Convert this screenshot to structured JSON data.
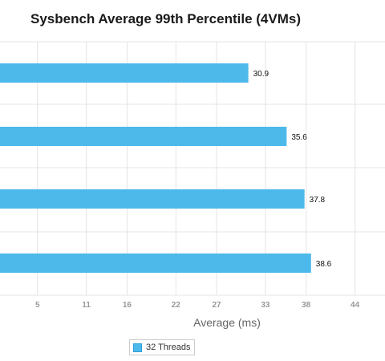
{
  "chart_data": {
    "type": "bar",
    "orientation": "horizontal",
    "title": "Sysbench Average 99th Percentile (4VMs)",
    "xlabel": "Average (ms)",
    "ylabel": "",
    "categories": [
      "",
      "",
      "",
      ""
    ],
    "series": [
      {
        "name": "32 Threads",
        "color": "#4db9ea",
        "values": [
          30.9,
          35.6,
          37.8,
          38.6
        ]
      }
    ],
    "data_labels": [
      "30.9",
      "35.6",
      "37.8",
      "38.6"
    ],
    "xticks": [
      5,
      11,
      16,
      22,
      27,
      33,
      38,
      44
    ],
    "xtick_labels": [
      "5",
      "11",
      "16",
      "22",
      "27",
      "33",
      "38",
      "44"
    ],
    "xlim": [
      0,
      49
    ],
    "grid": true,
    "legend_position": "bottom"
  }
}
